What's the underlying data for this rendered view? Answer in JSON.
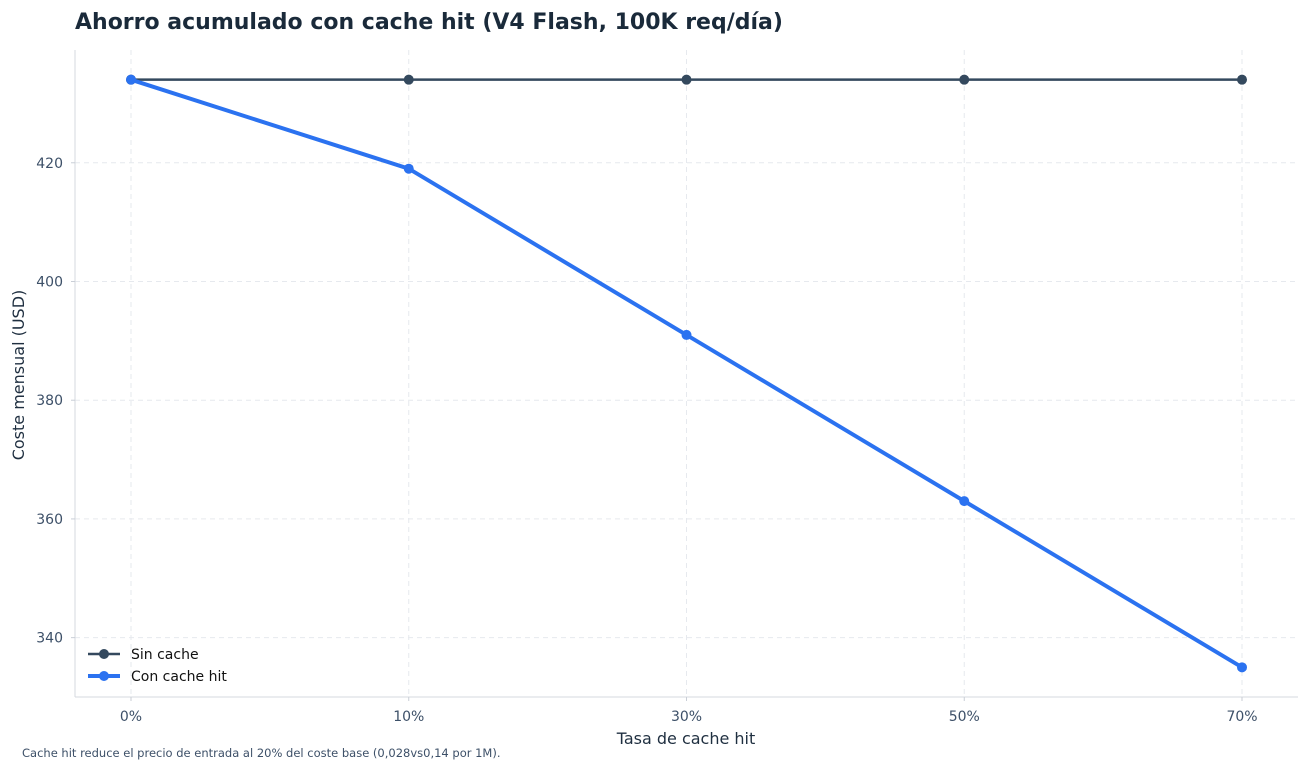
{
  "chart_data": {
    "type": "line",
    "title": "Ahorro acumulado con cache hit (V4 Flash, 100K req/día)",
    "xlabel": "Tasa de cache hit",
    "ylabel": "Coste mensual (USD)",
    "categories": [
      "0%",
      "10%",
      "30%",
      "50%",
      "70%"
    ],
    "ylim": [
      330,
      439
    ],
    "yticks": [
      340,
      360,
      380,
      400,
      420
    ],
    "grid": true,
    "legend_position": "lower-left",
    "series": [
      {
        "name": "Sin cache",
        "values": [
          434,
          434,
          434,
          434,
          434
        ],
        "color": "#34495e"
      },
      {
        "name": "Con cache hit",
        "values": [
          434,
          419,
          391,
          363,
          335
        ],
        "color": "#2b72f0"
      }
    ],
    "footnote": "Cache hit reduce el precio de entrada al 20% del coste base (0,028vs0,14 por 1M)."
  }
}
